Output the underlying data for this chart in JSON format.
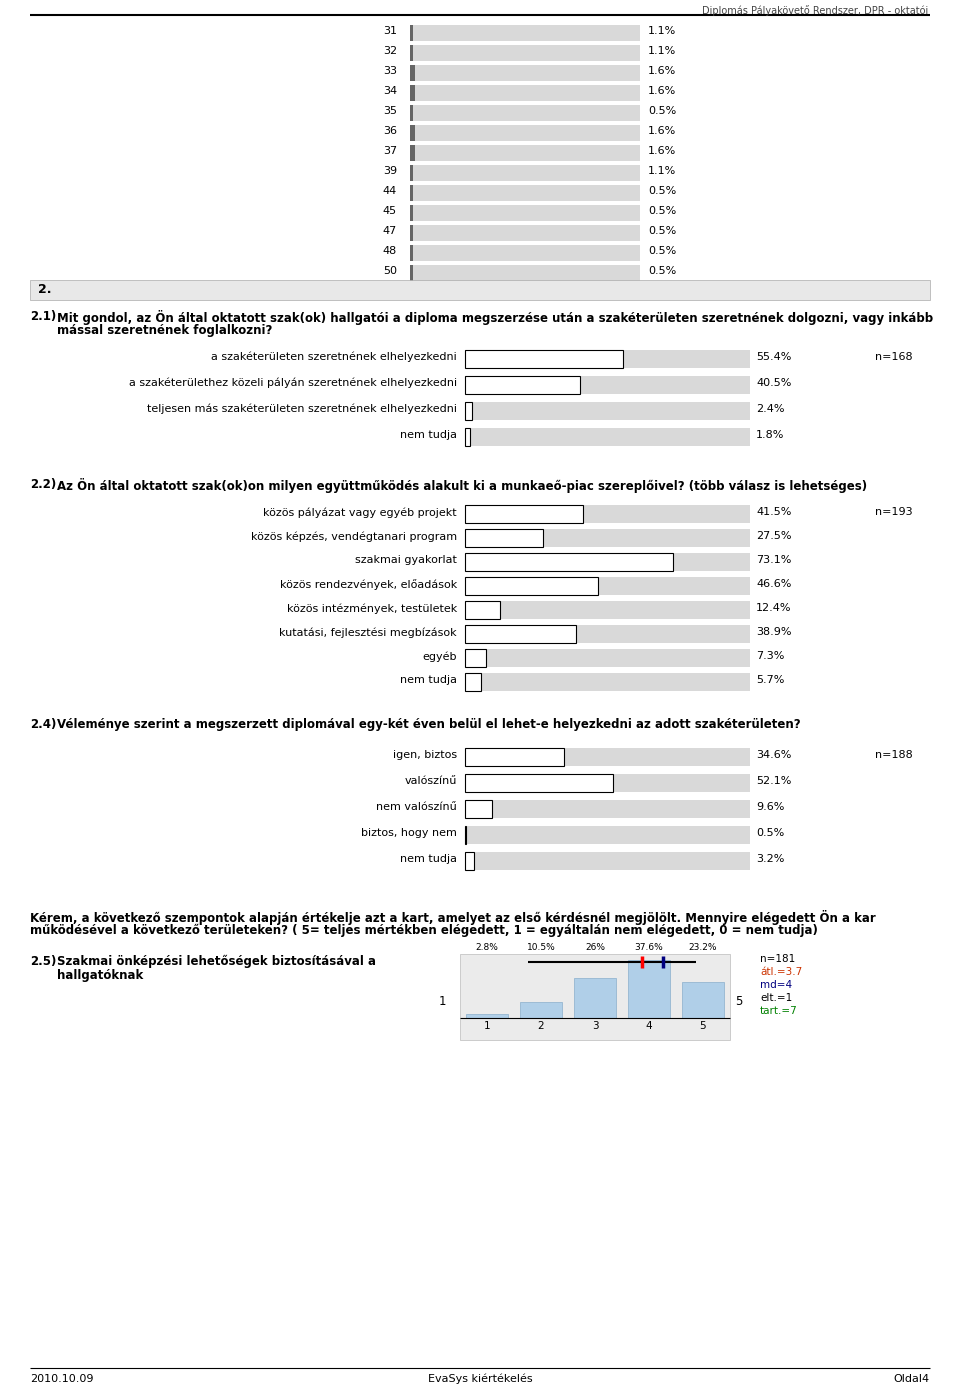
{
  "header_text": "Diplomás Pályakövető Rendszer, DPR - oktatói",
  "top_bars": {
    "labels": [
      "31",
      "32",
      "33",
      "34",
      "35",
      "36",
      "37",
      "39",
      "44",
      "45",
      "47",
      "48",
      "50"
    ],
    "values": [
      1.1,
      1.1,
      1.6,
      1.6,
      0.5,
      1.6,
      1.6,
      1.1,
      0.5,
      0.5,
      0.5,
      0.5,
      0.5
    ],
    "bar_color": "#d9d9d9",
    "thin_bar_color": "#666666"
  },
  "section2_label": "2.",
  "q21_label": "2.1)",
  "q21_text_line1": "Mit gondol, az Ön által oktatott szak(ok) hallgatói a diploma megszerzése után a szakéterületen szeretnének dolgozni, vagy inkább",
  "q21_text_line2": "mással szeretnének foglalkozni?",
  "q21_n": "n=168",
  "q21_bars": {
    "labels": [
      "a szakéterületen szeretnének elhelyezkedni",
      "a szakéterülethez közeli pályán szeretnének elhelyezkedni",
      "teljesen más szakéterületen szeretnének elhelyezkedni",
      "nem tudja"
    ],
    "values": [
      55.4,
      40.5,
      2.4,
      1.8
    ],
    "bar_color": "#ffffff",
    "bg_color": "#d9d9d9",
    "border_color": "#000000"
  },
  "q22_label": "2.2)",
  "q22_text": "Az Ön által oktatott szak(ok)on milyen együttműködés alakult ki a munkaeő-piac szereplőivel? (több válasz is lehetséges)",
  "q22_n": "n=193",
  "q22_bars": {
    "labels": [
      "közös pályázat vagy egyéb projekt",
      "közös képzés, vendégtanari program",
      "szakmai gyakorlat",
      "közös rendezvények, előadások",
      "közös intézmények, testületek",
      "kutatási, fejlesztési megbízások",
      "egyéb",
      "nem tudja"
    ],
    "values": [
      41.5,
      27.5,
      73.1,
      46.6,
      12.4,
      38.9,
      7.3,
      5.7
    ],
    "bar_color": "#ffffff",
    "bg_color": "#d9d9d9",
    "border_color": "#000000"
  },
  "q24_label": "2.4)",
  "q24_text": "Véleménye szerint a megszerzett diplomával egy-két éven belül el lehet-e helyezkedni az adott szakéterületen?",
  "q24_n": "n=188",
  "q24_bars": {
    "labels": [
      "igen, biztos",
      "valószínű",
      "nem valószínű",
      "biztos, hogy nem",
      "nem tudja"
    ],
    "values": [
      34.6,
      52.1,
      9.6,
      0.5,
      3.2
    ],
    "bar_color": "#ffffff",
    "bg_color": "#d9d9d9",
    "border_color": "#000000"
  },
  "rating_intro_line1": "Kérem, a következő szempontok alapján értékelje azt a kart, amelyet az első kérdésnél megjölölt. Mennyire elégedett Ön a kar",
  "rating_intro_line2": "működésével a következő területeken? ( 5= teljes mértékben elégedett, 1 = egyáltalán nem elégedett, 0 = nem tudja)",
  "q25_label": "2.5)",
  "q25_text_line1": "Szakmai önképzési lehetőségek biztosításával a",
  "q25_text_line2": "hallgatóknak",
  "q25_n": "n=181",
  "q25_atl": "átl.=3.7",
  "q25_md": "md=4",
  "q25_elt": "elt.=1",
  "q25_tart": "tart.=7",
  "q25_hist_values": [
    2.8,
    10.5,
    26.0,
    37.6,
    23.2
  ],
  "q25_hist_pct_labels": [
    "2.8%",
    "10.5%",
    "26%",
    "37.6%",
    "23.2%"
  ],
  "q25_mean": 3.7,
  "q25_median": 4,
  "footer_date": "2010.10.09",
  "footer_center": "EvaSys kiértékelés",
  "footer_right": "Oldal4"
}
